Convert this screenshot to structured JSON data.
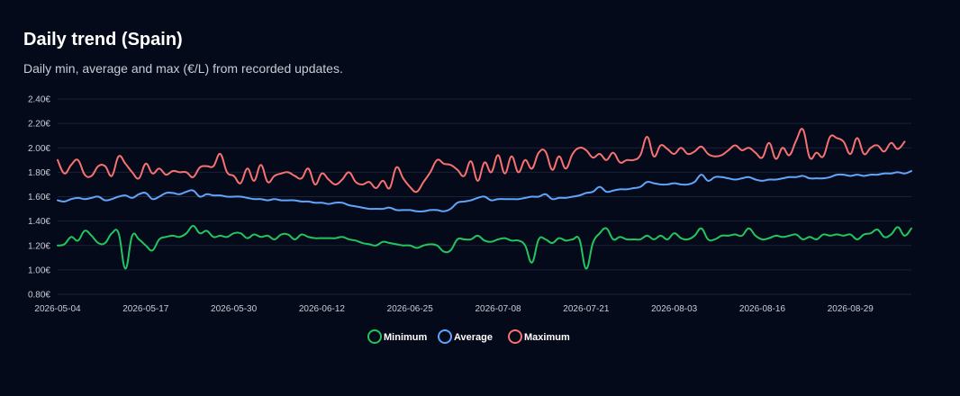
{
  "header": {
    "title": "Daily trend (Spain)",
    "subtitle": "Daily min, average and max (€/L) from recorded updates."
  },
  "chart_data": {
    "type": "line",
    "title": "Daily trend (Spain)",
    "subtitle": "Daily min, average and max (€/L) from recorded updates.",
    "xlabel": "",
    "ylabel": "",
    "x_start": "2026-05-04",
    "x_ticks": [
      "2026-05-04",
      "2026-05-17",
      "2026-05-30",
      "2026-06-12",
      "2026-06-25",
      "2026-07-08",
      "2026-07-21",
      "2026-08-03",
      "2026-08-16",
      "2026-08-29"
    ],
    "y_ticks": [
      "2.40€",
      "2.20€",
      "2.00€",
      "1.80€",
      "1.60€",
      "1.40€",
      "1.20€",
      "1.00€",
      "0.80€"
    ],
    "ylim": [
      0.8,
      2.4
    ],
    "grid": true,
    "legend_position": "bottom",
    "series": [
      {
        "name": "Minimum",
        "color": "#22c55e",
        "values": [
          1.2,
          1.21,
          1.27,
          1.24,
          1.32,
          1.28,
          1.22,
          1.22,
          1.3,
          1.3,
          1.01,
          1.28,
          1.25,
          1.2,
          1.16,
          1.25,
          1.27,
          1.28,
          1.27,
          1.3,
          1.36,
          1.3,
          1.32,
          1.27,
          1.28,
          1.27,
          1.3,
          1.3,
          1.26,
          1.29,
          1.27,
          1.28,
          1.25,
          1.29,
          1.29,
          1.25,
          1.29,
          1.27,
          1.26,
          1.26,
          1.26,
          1.26,
          1.27,
          1.25,
          1.24,
          1.22,
          1.21,
          1.2,
          1.23,
          1.22,
          1.21,
          1.2,
          1.2,
          1.18,
          1.2,
          1.21,
          1.2,
          1.15,
          1.16,
          1.25,
          1.25,
          1.25,
          1.28,
          1.24,
          1.23,
          1.25,
          1.26,
          1.24,
          1.24,
          1.2,
          1.06,
          1.25,
          1.25,
          1.22,
          1.26,
          1.24,
          1.25,
          1.25,
          1.01,
          1.22,
          1.3,
          1.34,
          1.25,
          1.27,
          1.25,
          1.25,
          1.25,
          1.28,
          1.25,
          1.28,
          1.25,
          1.3,
          1.26,
          1.25,
          1.28,
          1.34,
          1.25,
          1.25,
          1.28,
          1.28,
          1.29,
          1.28,
          1.34,
          1.28,
          1.25,
          1.26,
          1.28,
          1.27,
          1.28,
          1.29,
          1.25,
          1.27,
          1.25,
          1.29,
          1.28,
          1.29,
          1.28,
          1.29,
          1.25,
          1.29,
          1.3,
          1.33,
          1.27,
          1.29,
          1.35,
          1.28,
          1.34
        ]
      },
      {
        "name": "Average",
        "color": "#60a5fa",
        "values": [
          1.57,
          1.56,
          1.58,
          1.59,
          1.58,
          1.59,
          1.6,
          1.57,
          1.58,
          1.6,
          1.61,
          1.59,
          1.62,
          1.63,
          1.58,
          1.6,
          1.63,
          1.63,
          1.62,
          1.64,
          1.65,
          1.6,
          1.62,
          1.61,
          1.61,
          1.6,
          1.6,
          1.6,
          1.59,
          1.58,
          1.58,
          1.57,
          1.58,
          1.57,
          1.57,
          1.57,
          1.56,
          1.56,
          1.55,
          1.55,
          1.54,
          1.55,
          1.55,
          1.53,
          1.52,
          1.51,
          1.5,
          1.5,
          1.5,
          1.51,
          1.49,
          1.49,
          1.49,
          1.48,
          1.48,
          1.49,
          1.49,
          1.48,
          1.5,
          1.55,
          1.56,
          1.57,
          1.59,
          1.6,
          1.57,
          1.58,
          1.58,
          1.58,
          1.58,
          1.59,
          1.6,
          1.6,
          1.62,
          1.58,
          1.59,
          1.59,
          1.6,
          1.61,
          1.63,
          1.64,
          1.68,
          1.64,
          1.65,
          1.66,
          1.66,
          1.67,
          1.68,
          1.72,
          1.71,
          1.7,
          1.7,
          1.71,
          1.7,
          1.7,
          1.72,
          1.78,
          1.73,
          1.76,
          1.76,
          1.75,
          1.74,
          1.75,
          1.76,
          1.74,
          1.73,
          1.74,
          1.74,
          1.75,
          1.76,
          1.76,
          1.77,
          1.75,
          1.75,
          1.75,
          1.76,
          1.78,
          1.78,
          1.77,
          1.78,
          1.77,
          1.78,
          1.78,
          1.79,
          1.79,
          1.8,
          1.79,
          1.81
        ]
      },
      {
        "name": "Maximum",
        "color": "#f87171",
        "values": [
          1.9,
          1.79,
          1.86,
          1.9,
          1.78,
          1.77,
          1.85,
          1.85,
          1.77,
          1.93,
          1.87,
          1.8,
          1.75,
          1.87,
          1.79,
          1.83,
          1.78,
          1.81,
          1.8,
          1.8,
          1.76,
          1.84,
          1.85,
          1.85,
          1.95,
          1.8,
          1.77,
          1.71,
          1.83,
          1.73,
          1.86,
          1.72,
          1.77,
          1.79,
          1.8,
          1.77,
          1.75,
          1.83,
          1.7,
          1.79,
          1.74,
          1.7,
          1.74,
          1.8,
          1.72,
          1.7,
          1.72,
          1.67,
          1.73,
          1.67,
          1.84,
          1.75,
          1.68,
          1.64,
          1.72,
          1.8,
          1.9,
          1.87,
          1.86,
          1.82,
          1.77,
          1.89,
          1.73,
          1.88,
          1.8,
          1.94,
          1.79,
          1.93,
          1.8,
          1.9,
          1.83,
          1.96,
          1.97,
          1.82,
          1.93,
          1.83,
          1.95,
          2.0,
          1.98,
          1.92,
          1.95,
          1.9,
          1.96,
          1.88,
          1.9,
          1.9,
          1.94,
          2.09,
          1.93,
          2.02,
          1.99,
          1.95,
          2.0,
          1.95,
          1.97,
          2.01,
          1.95,
          1.93,
          1.94,
          1.98,
          2.02,
          1.98,
          2.0,
          1.96,
          1.92,
          2.04,
          1.91,
          2.0,
          1.94,
          2.06,
          2.15,
          1.92,
          1.96,
          1.93,
          2.09,
          2.08,
          2.05,
          1.95,
          2.08,
          1.95,
          2.0,
          2.02,
          1.97,
          2.04,
          1.99,
          2.05
        ]
      }
    ]
  }
}
